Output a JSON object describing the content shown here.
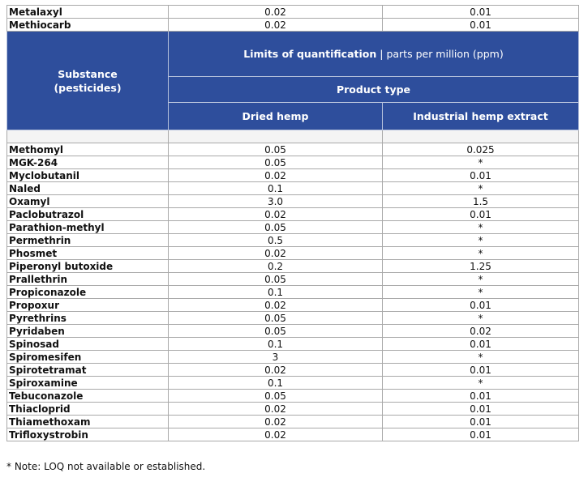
{
  "pre_rows": [
    {
      "name": "Metalaxyl",
      "dried": "0.02",
      "extract": "0.01"
    },
    {
      "name": "Methiocarb",
      "dried": "0.02",
      "extract": "0.01"
    }
  ],
  "header": {
    "substance_line1": "Substance",
    "substance_line2": "(pesticides)",
    "loq_bold": "Limits of quantification",
    "loq_sep": " | ",
    "loq_unit": "parts per million (ppm)",
    "product_type": "Product type",
    "col_dried": "Dried hemp",
    "col_extract": "Industrial hemp extract"
  },
  "rows": [
    {
      "name": "Methomyl",
      "dried": "0.05",
      "extract": "0.025"
    },
    {
      "name": "MGK-264",
      "dried": "0.05",
      "extract": "*"
    },
    {
      "name": "Myclobutanil",
      "dried": "0.02",
      "extract": "0.01"
    },
    {
      "name": "Naled",
      "dried": "0.1",
      "extract": "*"
    },
    {
      "name": "Oxamyl",
      "dried": "3.0",
      "extract": "1.5"
    },
    {
      "name": "Paclobutrazol",
      "dried": "0.02",
      "extract": "0.01"
    },
    {
      "name": "Parathion-methyl",
      "dried": "0.05",
      "extract": "*"
    },
    {
      "name": "Permethrin",
      "dried": "0.5",
      "extract": "*"
    },
    {
      "name": "Phosmet",
      "dried": "0.02",
      "extract": "*"
    },
    {
      "name": "Piperonyl butoxide",
      "dried": "0.2",
      "extract": "1.25"
    },
    {
      "name": "Prallethrin",
      "dried": "0.05",
      "extract": "*"
    },
    {
      "name": "Propiconazole",
      "dried": "0.1",
      "extract": "*"
    },
    {
      "name": "Propoxur",
      "dried": "0.02",
      "extract": "0.01"
    },
    {
      "name": "Pyrethrins",
      "dried": "0.05",
      "extract": "*"
    },
    {
      "name": "Pyridaben",
      "dried": "0.05",
      "extract": "0.02"
    },
    {
      "name": "Spinosad",
      "dried": "0.1",
      "extract": "0.01"
    },
    {
      "name": "Spiromesifen",
      "dried": "3",
      "extract": "*"
    },
    {
      "name": "Spirotetramat",
      "dried": "0.02",
      "extract": "0.01"
    },
    {
      "name": "Spiroxamine",
      "dried": "0.1",
      "extract": "*"
    },
    {
      "name": "Tebuconazole",
      "dried": "0.05",
      "extract": "0.01"
    },
    {
      "name": "Thiacloprid",
      "dried": "0.02",
      "extract": "0.01"
    },
    {
      "name": "Thiamethoxam",
      "dried": "0.02",
      "extract": "0.01"
    },
    {
      "name": "Trifloxystrobin",
      "dried": "0.02",
      "extract": "0.01"
    }
  ],
  "note": "* Note:  LOQ not available or established."
}
